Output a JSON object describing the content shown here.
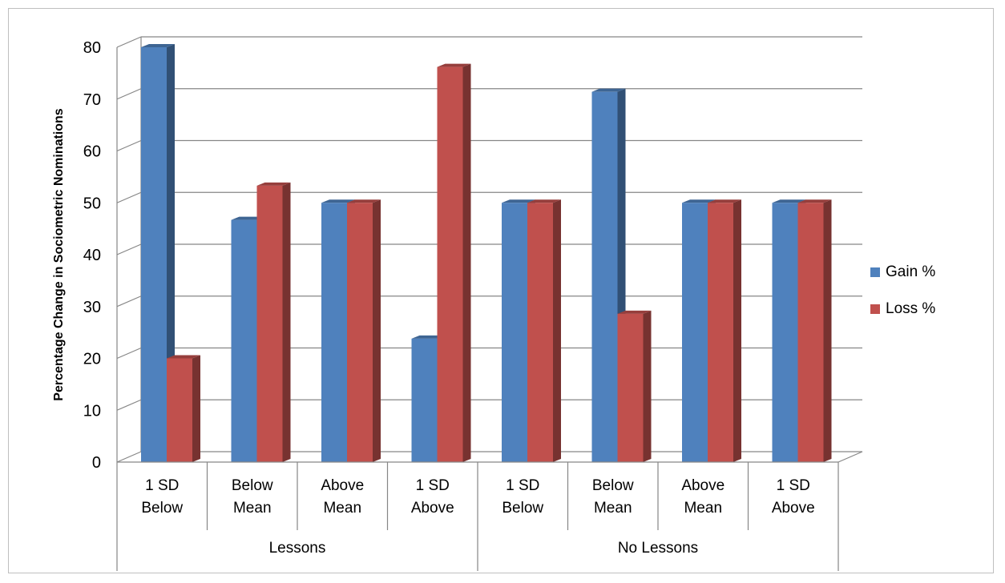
{
  "chart_data": {
    "type": "bar",
    "title": "",
    "xlabel": "",
    "ylabel": "Percentage Change in Sociometric Nominations",
    "ylim": [
      0,
      80
    ],
    "yticks": [
      0,
      10,
      20,
      30,
      40,
      50,
      60,
      70,
      80
    ],
    "grid": true,
    "legend_position": "right",
    "style": "3d-clustered-column",
    "groups": [
      {
        "label": "Lessons",
        "categories": [
          [
            "1 SD",
            "Below"
          ],
          [
            "Below",
            "Mean"
          ],
          [
            "Above",
            "Mean"
          ],
          [
            "1 SD",
            "Above"
          ]
        ]
      },
      {
        "label": "No Lessons",
        "categories": [
          [
            "1 SD",
            "Below"
          ],
          [
            "Below",
            "Mean"
          ],
          [
            "Above",
            "Mean"
          ],
          [
            "1 SD",
            "Above"
          ]
        ]
      }
    ],
    "series": [
      {
        "name": "Gain %",
        "color": "#4f81bd",
        "values": [
          80,
          46.7,
          50,
          23.8,
          50,
          71.4,
          50,
          50
        ]
      },
      {
        "name": "Loss %",
        "color": "#c0504d",
        "values": [
          20,
          53.3,
          50,
          76.2,
          50,
          28.6,
          50,
          50
        ]
      }
    ]
  }
}
